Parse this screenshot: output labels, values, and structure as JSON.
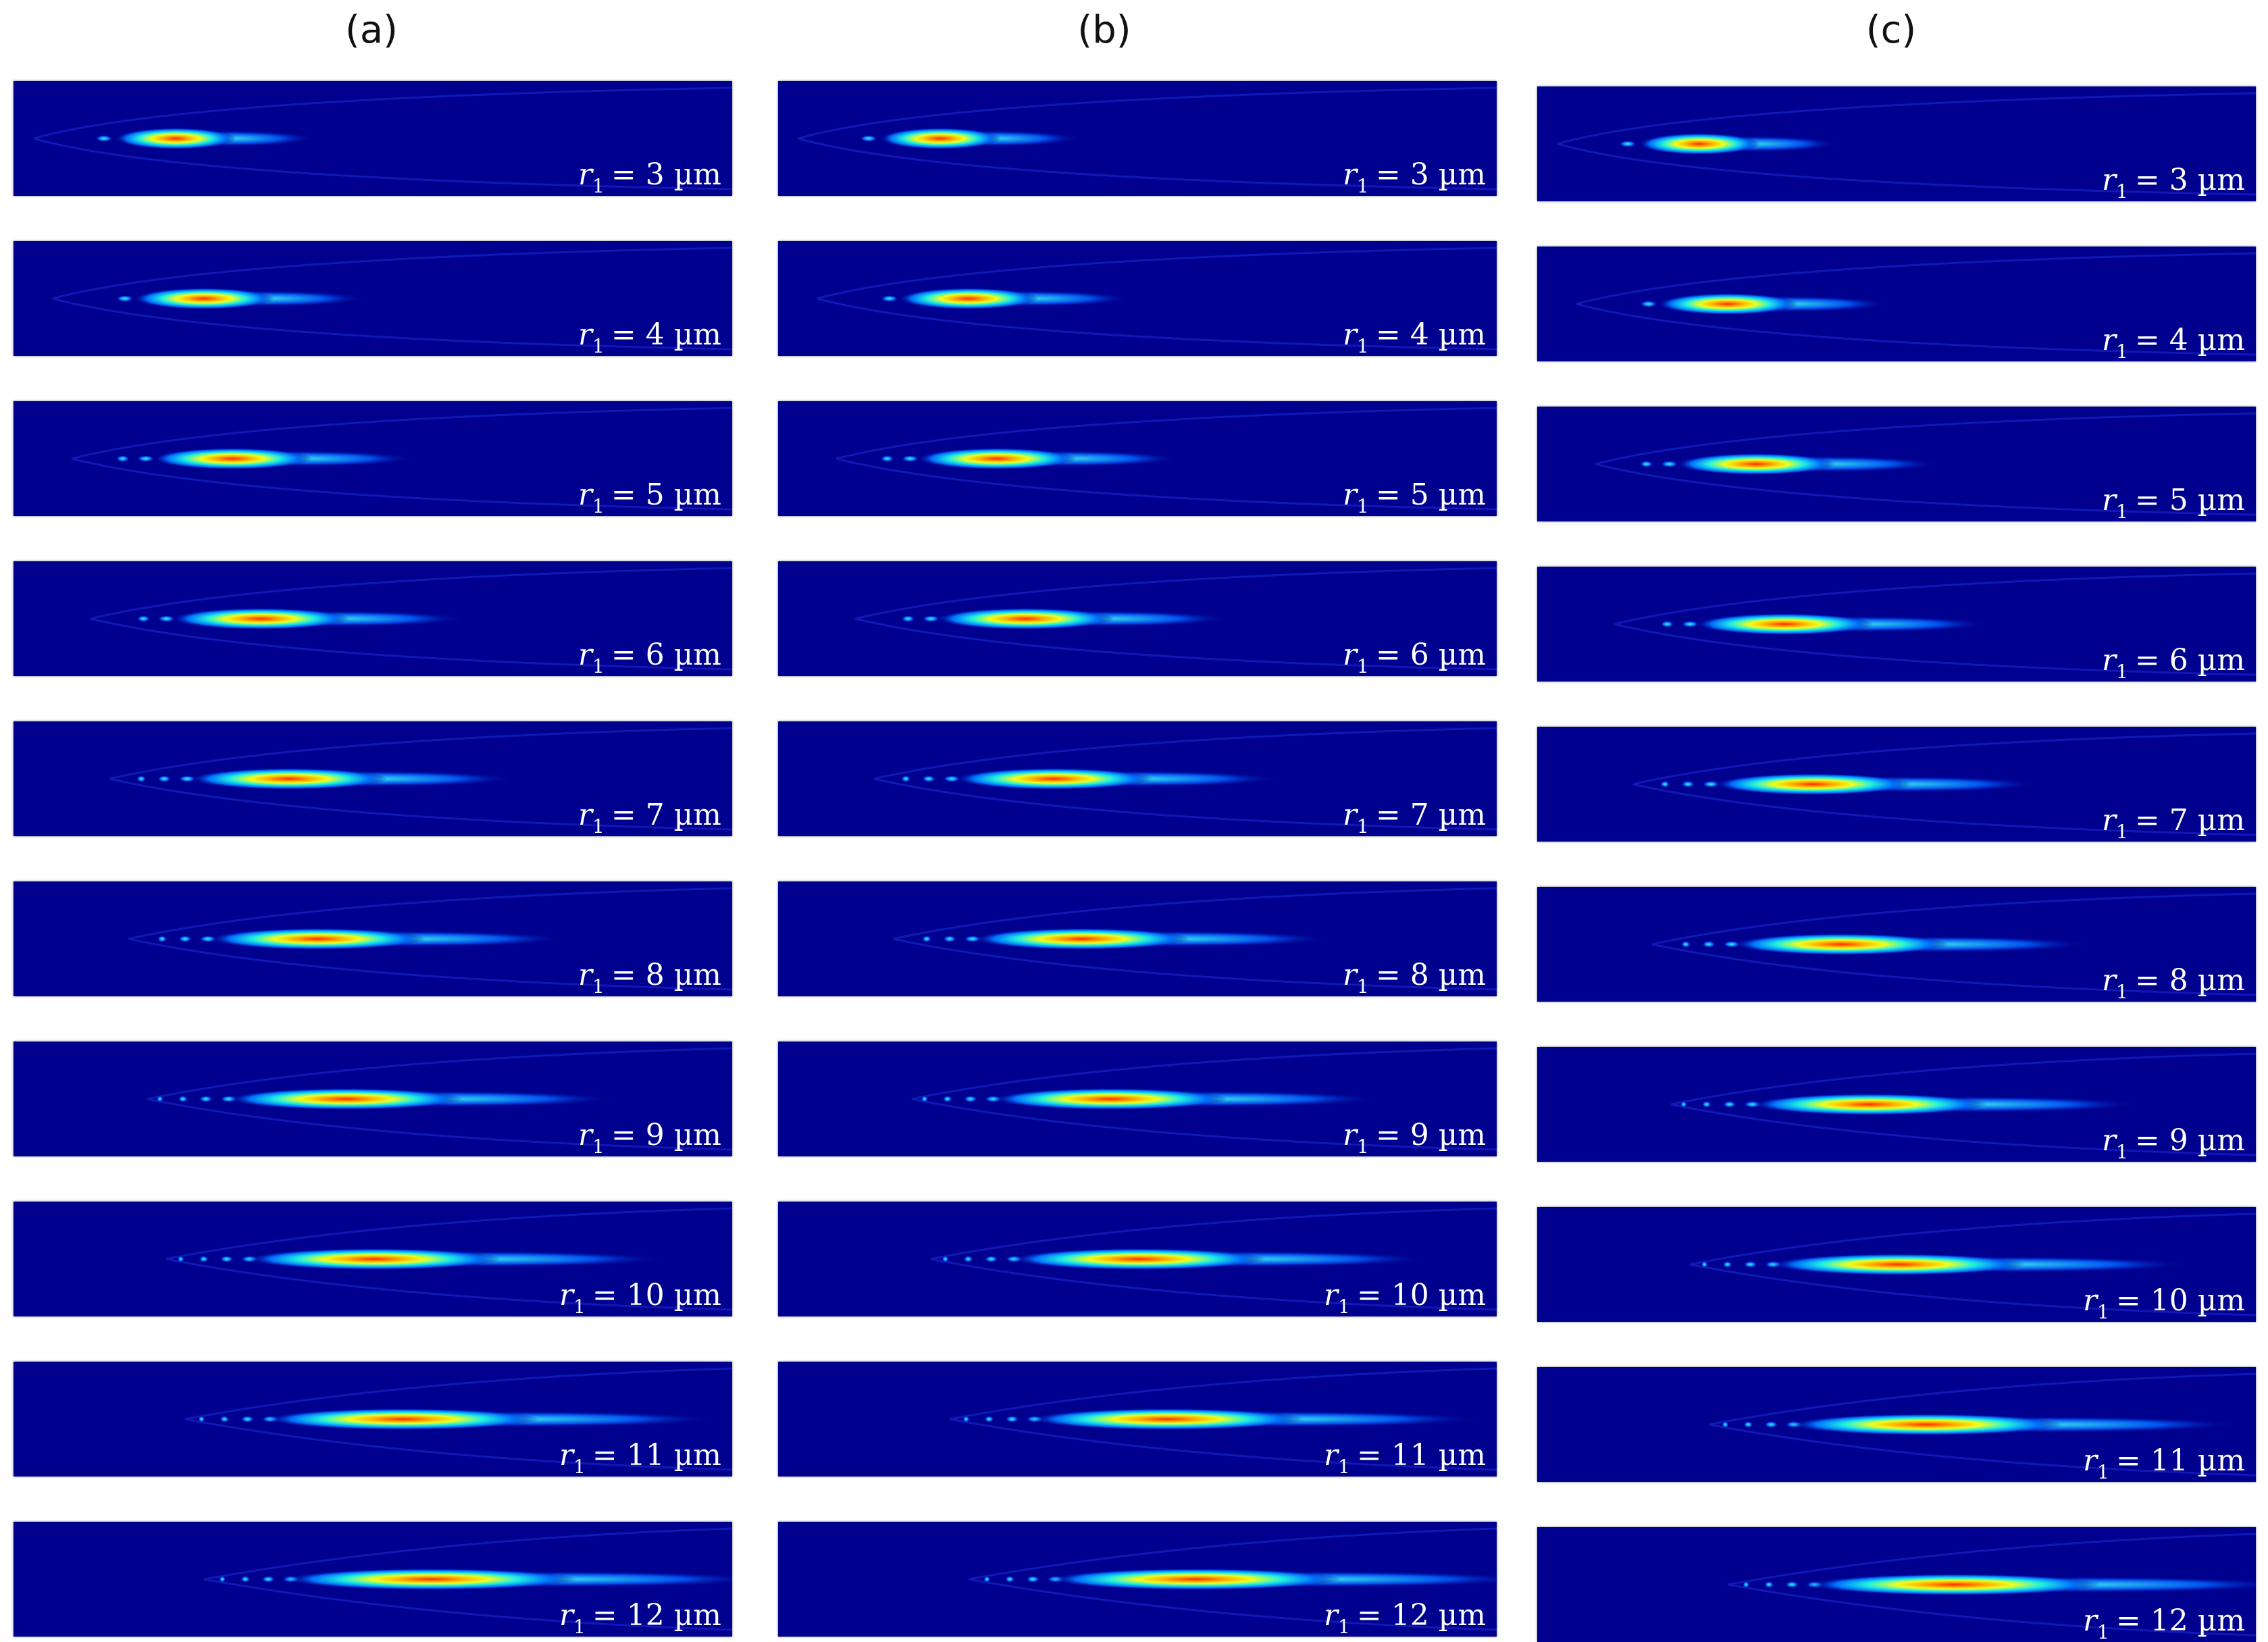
{
  "columns": [
    {
      "title": "(a)",
      "panels": [
        {
          "label_var": "r",
          "label_sub": "1",
          "label_value": "= 3 µm"
        },
        {
          "label_var": "r",
          "label_sub": "1",
          "label_value": "= 4 µm"
        },
        {
          "label_var": "r",
          "label_sub": "1",
          "label_value": "= 5 µm"
        },
        {
          "label_var": "r",
          "label_sub": "1",
          "label_value": "= 6 µm"
        },
        {
          "label_var": "r",
          "label_sub": "1",
          "label_value": "= 7 µm"
        },
        {
          "label_var": "r",
          "label_sub": "1",
          "label_value": "= 8 µm"
        },
        {
          "label_var": "r",
          "label_sub": "1",
          "label_value": "= 9 µm"
        },
        {
          "label_var": "r",
          "label_sub": "1",
          "label_value": "= 10 µm"
        },
        {
          "label_var": "r",
          "label_sub": "1",
          "label_value": "= 11 µm"
        },
        {
          "label_var": "r",
          "label_sub": "1",
          "label_value": "= 12 µm"
        }
      ]
    },
    {
      "title": "(b)",
      "panels": [
        {
          "label_var": "r",
          "label_sub": "1",
          "label_value": "= 3 µm"
        },
        {
          "label_var": "r",
          "label_sub": "1",
          "label_value": "= 4 µm"
        },
        {
          "label_var": "r",
          "label_sub": "1",
          "label_value": "= 5 µm"
        },
        {
          "label_var": "r",
          "label_sub": "1",
          "label_value": "= 6 µm"
        },
        {
          "label_var": "r",
          "label_sub": "1",
          "label_value": "= 7 µm"
        },
        {
          "label_var": "r",
          "label_sub": "1",
          "label_value": "= 8 µm"
        },
        {
          "label_var": "r",
          "label_sub": "1",
          "label_value": "= 9 µm"
        },
        {
          "label_var": "r",
          "label_sub": "1",
          "label_value": "= 10 µm"
        },
        {
          "label_var": "r",
          "label_sub": "1",
          "label_value": "= 11 µm"
        },
        {
          "label_var": "r",
          "label_sub": "1",
          "label_value": "= 12 µm"
        }
      ]
    },
    {
      "title": "(c)",
      "panels": [
        {
          "label_var": "r",
          "label_sub": "1",
          "label_value": "= 3 µm"
        },
        {
          "label_var": "r",
          "label_sub": "1",
          "label_value": "= 4 µm"
        },
        {
          "label_var": "r",
          "label_sub": "1",
          "label_value": "= 5 µm"
        },
        {
          "label_var": "r",
          "label_sub": "1",
          "label_value": "= 6 µm"
        },
        {
          "label_var": "r",
          "label_sub": "1",
          "label_value": "= 7 µm"
        },
        {
          "label_var": "r",
          "label_sub": "1",
          "label_value": "= 8 µm"
        },
        {
          "label_var": "r",
          "label_sub": "1",
          "label_value": "= 9 µm"
        },
        {
          "label_var": "r",
          "label_sub": "1",
          "label_value": "= 10 µm"
        },
        {
          "label_var": "r",
          "label_sub": "1",
          "label_value": "= 11 µm"
        },
        {
          "label_var": "r",
          "label_sub": "1",
          "label_value": "= 12 µm"
        }
      ]
    }
  ],
  "colors": {
    "background": "#00008e",
    "cold": "#0000ff",
    "cyan": "#00e5ff",
    "yellow": "#ffff00",
    "hot": "#ff2000"
  }
}
